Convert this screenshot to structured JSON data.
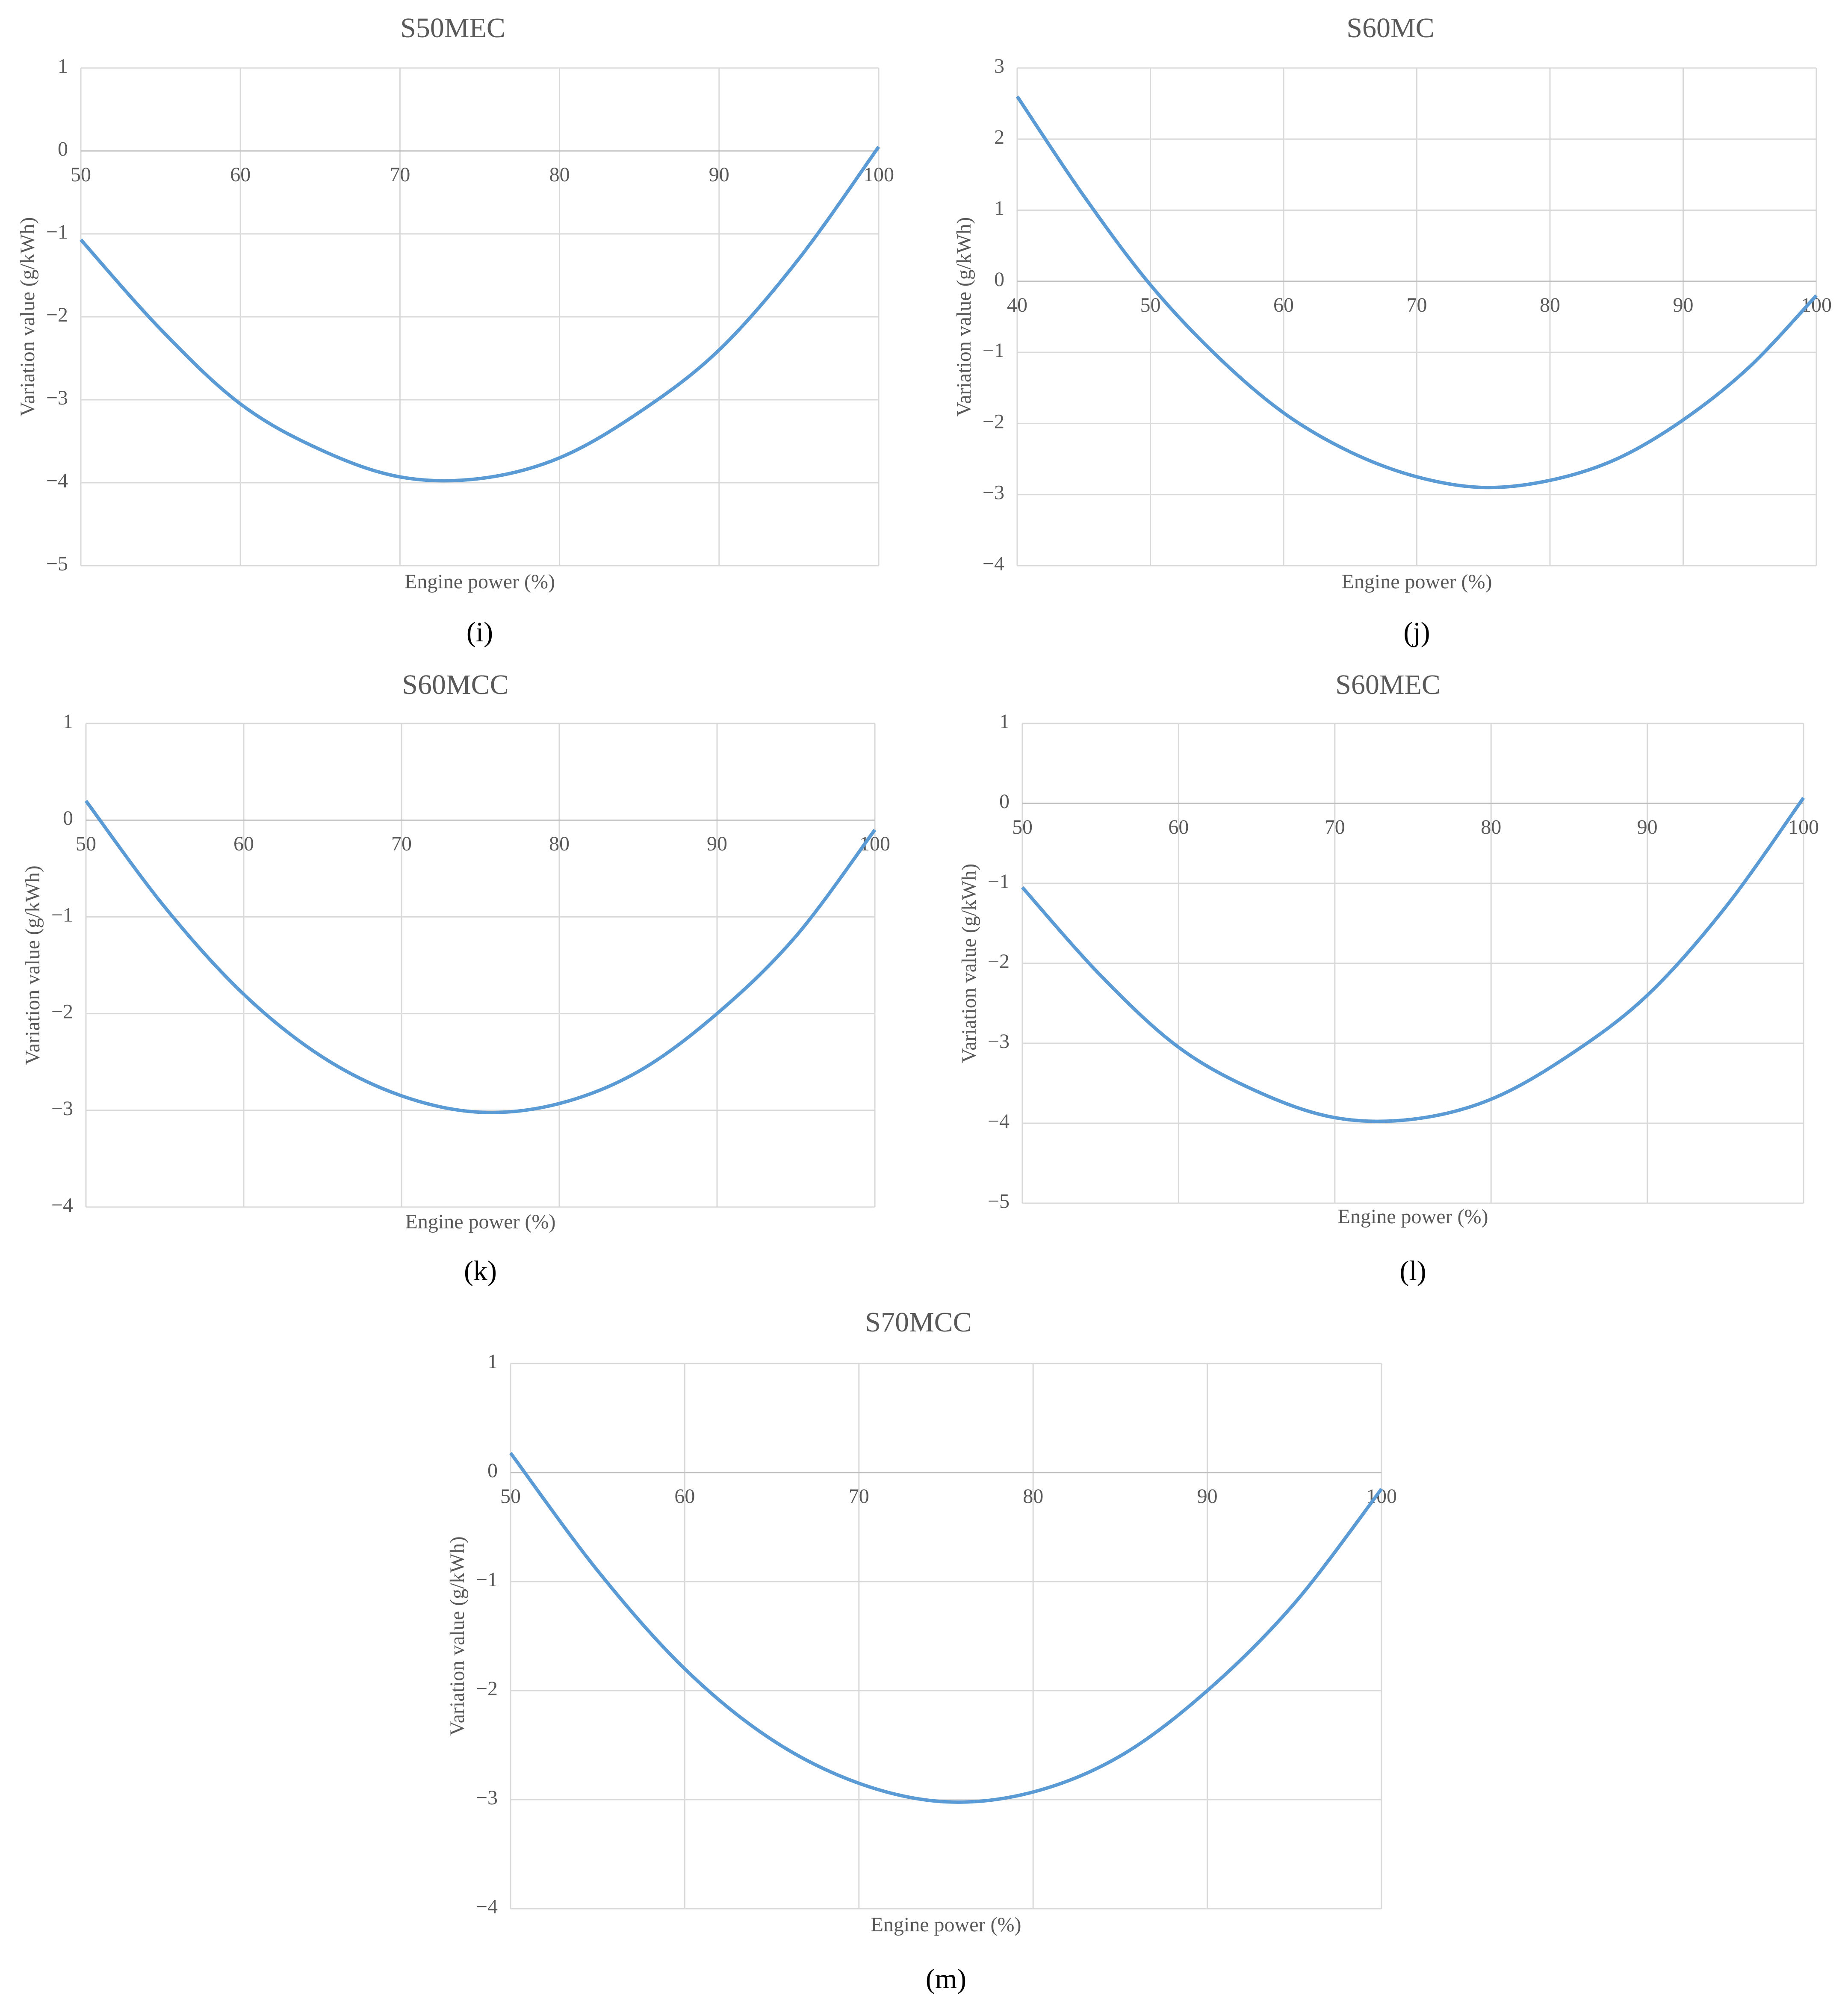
{
  "chart_data": [
    {
      "type": "line",
      "title": "S50MEC",
      "x_label": "Engine power (%)",
      "y_label": "Variation value (g/kWh)",
      "panel_label": "(i)",
      "x": [
        50,
        55,
        60,
        65,
        70,
        75,
        80,
        85,
        90,
        95,
        100
      ],
      "values": [
        -1.07,
        -2.15,
        -3.05,
        -3.6,
        -3.93,
        -3.95,
        -3.7,
        -3.15,
        -2.4,
        -1.3,
        0.05
      ],
      "color": "#5b9bd5",
      "xlim": [
        50,
        100
      ],
      "ylim": [
        -5,
        1
      ],
      "xticks": [
        50,
        60,
        70,
        80,
        90,
        100
      ],
      "yticks": [
        {
          "value": -5,
          "label": "−5"
        },
        {
          "value": -4,
          "label": "−4"
        },
        {
          "value": -3,
          "label": "−3"
        },
        {
          "value": -2,
          "label": "−2"
        },
        {
          "value": -1,
          "label": "−1"
        },
        0,
        1
      ],
      "grid": true
    },
    {
      "type": "line",
      "title": "S60MC",
      "x_label": "Engine power (%)",
      "y_label": "Variation value (g/kWh)",
      "panel_label": "(j)",
      "x": [
        40,
        45,
        50,
        55,
        60,
        65,
        70,
        75,
        80,
        85,
        90,
        95,
        100
      ],
      "values": [
        2.6,
        1.2,
        -0.05,
        -1.05,
        -1.85,
        -2.4,
        -2.75,
        -2.9,
        -2.8,
        -2.5,
        -1.95,
        -1.2,
        -0.2
      ],
      "color": "#5b9bd5",
      "xlim": [
        40,
        100
      ],
      "ylim": [
        -4,
        3
      ],
      "xticks": [
        40,
        50,
        60,
        70,
        80,
        90,
        100
      ],
      "yticks": [
        {
          "value": -4,
          "label": "−4"
        },
        {
          "value": -3,
          "label": "−3"
        },
        {
          "value": -2,
          "label": "−2"
        },
        {
          "value": -1,
          "label": "−1"
        },
        0,
        1,
        2,
        3
      ],
      "grid": true
    },
    {
      "type": "line",
      "title": "S60MCC",
      "x_label": "Engine power (%)",
      "y_label": "Variation value (g/kWh)",
      "panel_label": "(k)",
      "x": [
        50,
        55,
        60,
        65,
        70,
        75,
        80,
        85,
        90,
        95,
        100
      ],
      "values": [
        0.2,
        -0.9,
        -1.8,
        -2.45,
        -2.85,
        -3.02,
        -2.93,
        -2.6,
        -2.0,
        -1.2,
        -0.1
      ],
      "color": "#5b9bd5",
      "xlim": [
        50,
        100
      ],
      "ylim": [
        -4,
        1
      ],
      "xticks": [
        50,
        60,
        70,
        80,
        90,
        100
      ],
      "yticks": [
        {
          "value": -4,
          "label": "−4"
        },
        {
          "value": -3,
          "label": "−3"
        },
        {
          "value": -2,
          "label": "−2"
        },
        {
          "value": -1,
          "label": "−1"
        },
        0,
        1
      ],
      "grid": true
    },
    {
      "type": "line",
      "title": "S60MEC",
      "x_label": "Engine power (%)",
      "y_label": "Variation value (g/kWh)",
      "panel_label": "(l)",
      "x": [
        50,
        55,
        60,
        65,
        70,
        75,
        80,
        85,
        90,
        95,
        100
      ],
      "values": [
        -1.05,
        -2.15,
        -3.05,
        -3.6,
        -3.93,
        -3.95,
        -3.7,
        -3.15,
        -2.4,
        -1.3,
        0.07
      ],
      "color": "#5b9bd5",
      "xlim": [
        50,
        100
      ],
      "ylim": [
        -5,
        1
      ],
      "xticks": [
        50,
        60,
        70,
        80,
        90,
        100
      ],
      "yticks": [
        {
          "value": -5,
          "label": "−5"
        },
        {
          "value": -4,
          "label": "−4"
        },
        {
          "value": -3,
          "label": "−3"
        },
        {
          "value": -2,
          "label": "−2"
        },
        {
          "value": -1,
          "label": "−1"
        },
        0,
        1
      ],
      "grid": true
    },
    {
      "type": "line",
      "title": "S70MCC",
      "x_label": "Engine power (%)",
      "y_label": "Variation value (g/kWh)",
      "panel_label": "(m)",
      "x": [
        50,
        55,
        60,
        65,
        70,
        75,
        80,
        85,
        90,
        95,
        100
      ],
      "values": [
        0.18,
        -0.9,
        -1.8,
        -2.45,
        -2.85,
        -3.02,
        -2.93,
        -2.6,
        -2.0,
        -1.2,
        -0.15
      ],
      "color": "#5b9bd5",
      "xlim": [
        50,
        100
      ],
      "ylim": [
        -4,
        1
      ],
      "xticks": [
        50,
        60,
        70,
        80,
        90,
        100
      ],
      "yticks": [
        {
          "value": -4,
          "label": "−4"
        },
        {
          "value": -3,
          "label": "−3"
        },
        {
          "value": -2,
          "label": "−2"
        },
        {
          "value": -1,
          "label": "−1"
        },
        0,
        1
      ],
      "grid": true
    }
  ]
}
